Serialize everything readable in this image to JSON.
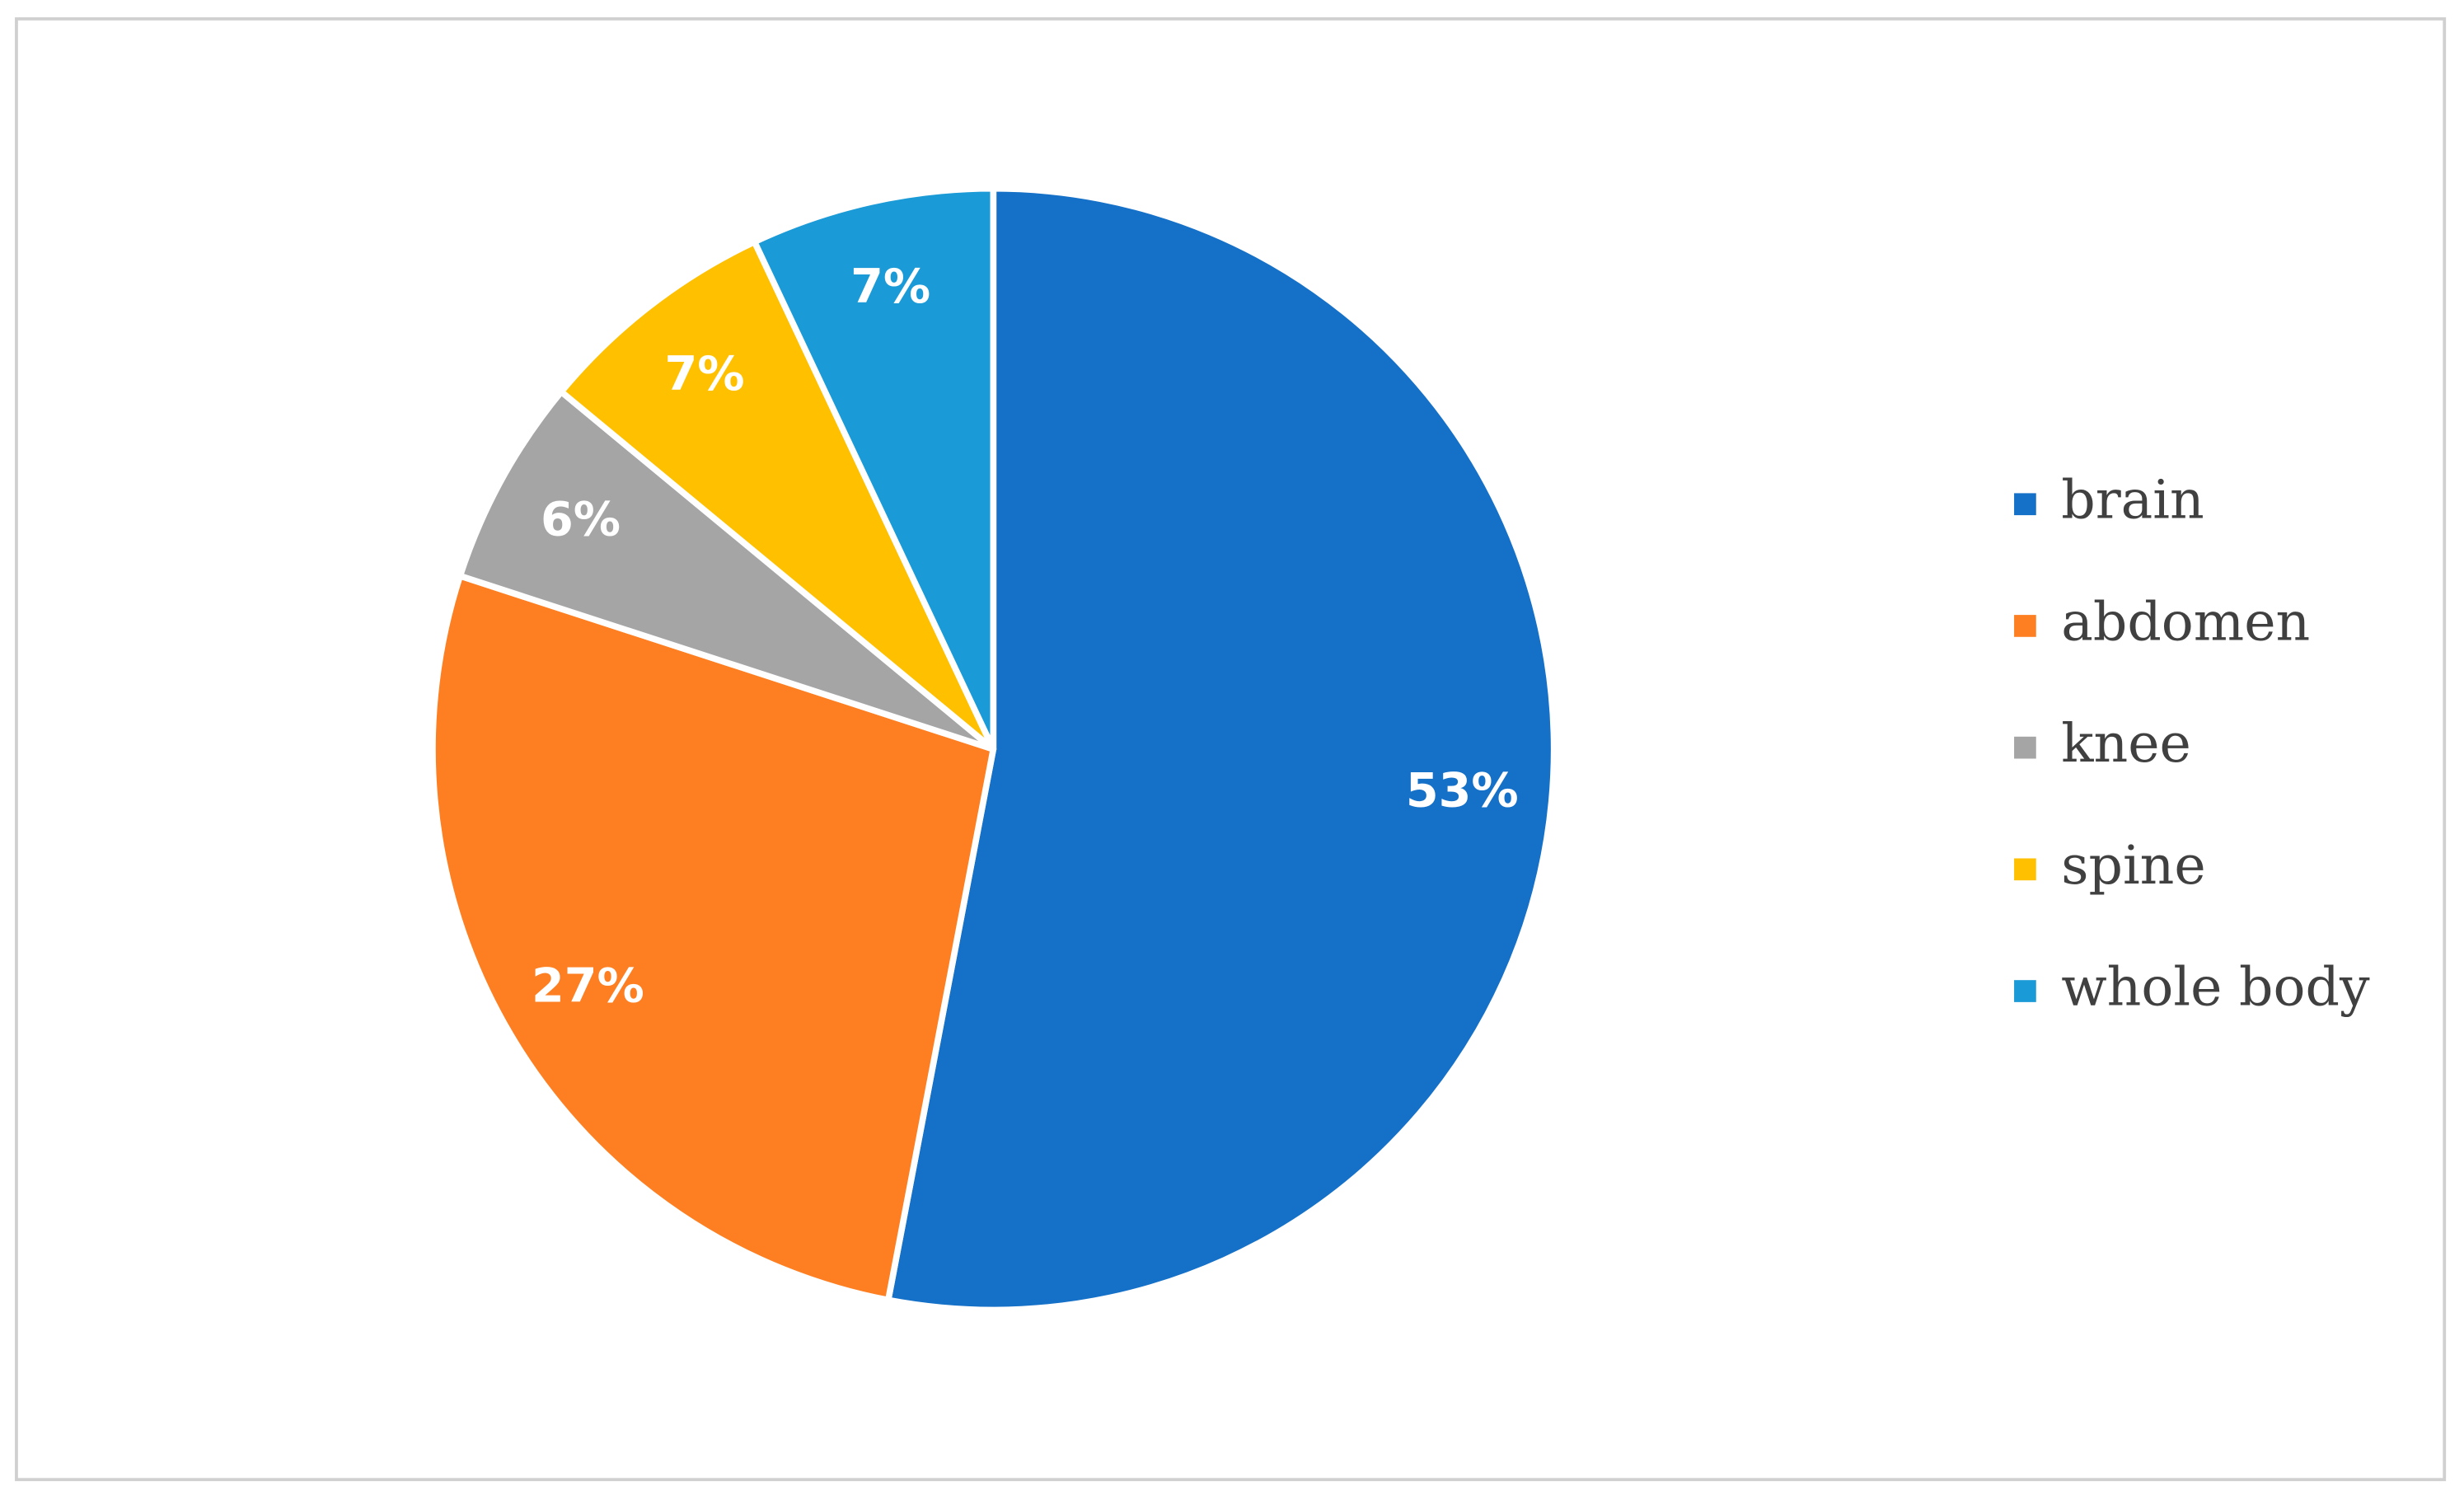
{
  "chart_data": {
    "type": "pie",
    "categories": [
      "brain",
      "abdomen",
      "knee",
      "spine",
      "whole body"
    ],
    "values": [
      53,
      27,
      6,
      7,
      7
    ],
    "value_labels": [
      "53%",
      "27%",
      "6%",
      "7%",
      "7%"
    ],
    "colors": [
      "#1570c8",
      "#fd7f22",
      "#a5a5a5",
      "#ffc000",
      "#1a9ad6"
    ],
    "legend": "right"
  }
}
